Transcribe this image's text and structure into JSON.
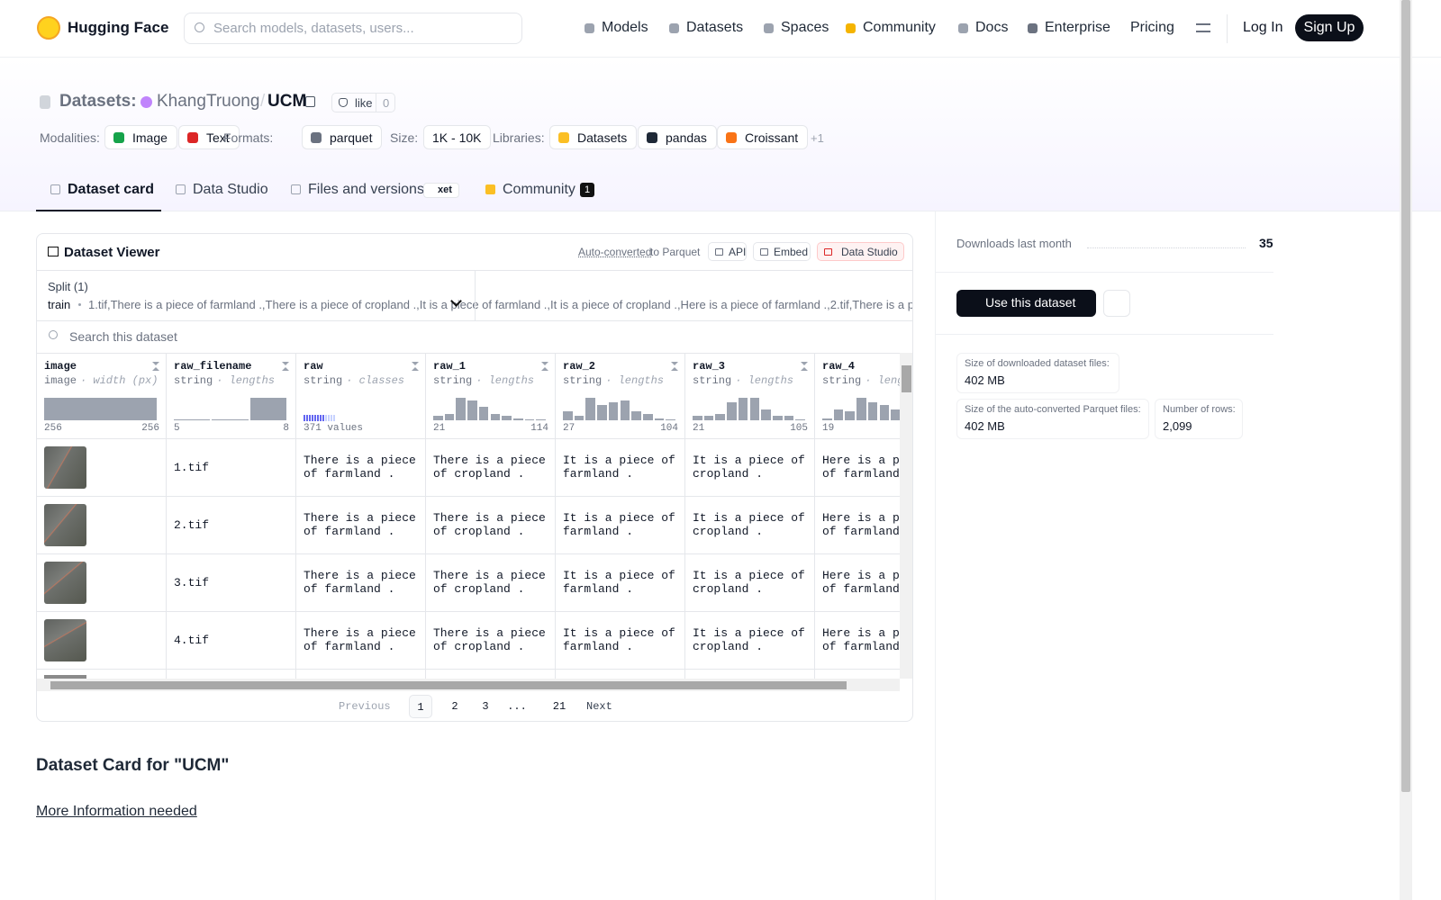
{
  "nav": {
    "brand": "Hugging Face",
    "search_placeholder": "Search models, datasets, users...",
    "links": [
      "Models",
      "Datasets",
      "Spaces",
      "Community",
      "Docs",
      "Enterprise",
      "Pricing"
    ],
    "login": "Log In",
    "signup": "Sign Up"
  },
  "header": {
    "prefix": "Datasets:",
    "owner": "KhangTruong",
    "separator": "/",
    "name": "UCM",
    "like": "like",
    "likes": 0
  },
  "tags": {
    "groups": [
      {
        "label": "Modalities:",
        "items": [
          "Image",
          "Text"
        ]
      },
      {
        "label": "Formats:",
        "items": [
          "parquet"
        ]
      },
      {
        "label": "Size:",
        "items": [
          "1K - 10K"
        ]
      },
      {
        "label": "Libraries:",
        "items": [
          "Datasets",
          "pandas",
          "Croissant"
        ]
      }
    ],
    "more": "+1"
  },
  "tabs": {
    "items": [
      "Dataset card",
      "Data Studio",
      "Files and versions",
      "Community"
    ],
    "xet": "xet",
    "community_count": 1
  },
  "viewer": {
    "title": "Dataset Viewer",
    "auto": "Auto-converted",
    "to": "to Parquet",
    "buttons": [
      "API",
      "Embed",
      "Data Studio"
    ],
    "split_label": "Split (1)",
    "split": "train",
    "rows": [
      [
        "1.tif",
        "There is a piece of farmland .",
        "There is a piece of cropland .",
        "It is a piece of farmland .",
        "It is a piece of cropland .",
        "Here is a piece of farmland ."
      ],
      [
        "2.tif",
        "There is a piece of farmland .",
        "There is a piece of cropland .",
        "It is a piece of farmland .",
        "It is a piece of cropland .",
        "Here is a piece of farmland ."
      ],
      [
        "3.tif",
        "There is a piece of farmland .",
        "There is a piece of cropland .",
        "It is a piece of farmland .",
        "It is a piece of cropland .",
        "Here is a piece of farmland ."
      ],
      [
        "4.tif",
        "There is a piece of farmland .",
        "There is a piece of cropland .",
        "It is a piece of farmland .",
        "It is a piece of cropland .",
        "Here is a piece of farmland ."
      ]
    ],
    "search": "Search this dataset",
    "columns": [
      {
        "name": "image",
        "type": "image",
        "stat": "width (px)",
        "min": "256",
        "max": "256",
        "hist": [
          1
        ]
      },
      {
        "name": "raw_filename",
        "type": "string",
        "stat": "lengths",
        "min": "5",
        "max": "8",
        "hist": [
          0.3,
          0.3,
          10
        ]
      },
      {
        "name": "raw",
        "type": "string",
        "stat": "classes",
        "min": "371 values"
      },
      {
        "name": "raw_1",
        "type": "string",
        "stat": "lengths",
        "min": "21",
        "max": "114",
        "hist": [
          2,
          3,
          10,
          9,
          6,
          3,
          2,
          1,
          0.4,
          0.4
        ]
      },
      {
        "name": "raw_2",
        "type": "string",
        "stat": "lengths",
        "min": "27",
        "max": "104",
        "hist": [
          4,
          2,
          10,
          7,
          8,
          9,
          4,
          3,
          1,
          0.4
        ]
      },
      {
        "name": "raw_3",
        "type": "string",
        "stat": "lengths",
        "min": "21",
        "max": "105",
        "hist": [
          2,
          2,
          3,
          8,
          10,
          10,
          5,
          2,
          2,
          0.4
        ]
      },
      {
        "name": "raw_4",
        "type": "string",
        "stat": "lengths",
        "min": "19",
        "hist": [
          1,
          5,
          4,
          10,
          8,
          7,
          5,
          3,
          2,
          1
        ]
      }
    ],
    "pagination": {
      "previous": "Previous",
      "pages": [
        "1",
        "2",
        "3",
        "...",
        "21"
      ],
      "next": "Next"
    }
  },
  "card": {
    "title": "Dataset Card for \"UCM\"",
    "link": "More Information needed"
  },
  "sidebar": {
    "downloads_label": "Downloads last month",
    "downloads": 35,
    "use": "Use this dataset",
    "stats": [
      {
        "label": "Size of downloaded dataset files:",
        "value": "402 MB"
      },
      {
        "label": "Size of the auto-converted Parquet files:",
        "value": "402 MB"
      },
      {
        "label": "Number of rows:",
        "value": "2,099"
      }
    ]
  }
}
